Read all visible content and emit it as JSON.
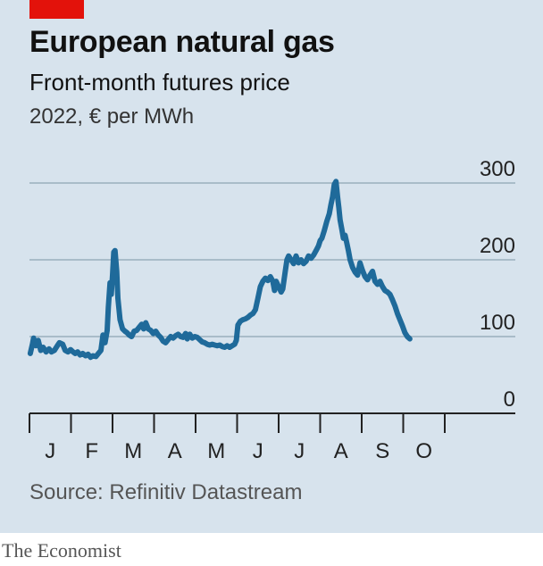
{
  "header": {
    "title": "European natural gas",
    "subtitle": "Front-month futures price",
    "units": "2022, € per MWh"
  },
  "footer": {
    "source": "Source: Refinitiv Datastream",
    "brand": "The Economist"
  },
  "colors": {
    "background": "#d7e3ed",
    "line": "#1f6a9a",
    "accent": "#e3120b",
    "grid": "#a9bcc9"
  },
  "chart_data": {
    "type": "line",
    "title": "European natural gas",
    "subtitle": "Front-month futures price",
    "ylabel": "2022, € per MWh",
    "xlabel": "",
    "ylim": [
      0,
      300
    ],
    "yticks": [
      0,
      100,
      200,
      300
    ],
    "grid": true,
    "x_tick_labels": [
      "J",
      "F",
      "M",
      "A",
      "M",
      "J",
      "J",
      "A",
      "S",
      "O"
    ],
    "x_units": "month index (0 = 1 Jan 2022, 1 = 1 Feb 2022, ...)",
    "xlim": [
      0,
      12
    ],
    "series": [
      {
        "name": "",
        "points": [
          [
            0.02,
            78
          ],
          [
            0.07,
            90
          ],
          [
            0.1,
            98
          ],
          [
            0.16,
            88
          ],
          [
            0.21,
            95
          ],
          [
            0.27,
            82
          ],
          [
            0.33,
            86
          ],
          [
            0.4,
            80
          ],
          [
            0.47,
            84
          ],
          [
            0.53,
            80
          ],
          [
            0.6,
            82
          ],
          [
            0.67,
            88
          ],
          [
            0.72,
            92
          ],
          [
            0.8,
            90
          ],
          [
            0.86,
            82
          ],
          [
            0.93,
            80
          ],
          [
            0.99,
            83
          ],
          [
            1.05,
            80
          ],
          [
            1.1,
            78
          ],
          [
            1.16,
            80
          ],
          [
            1.22,
            76
          ],
          [
            1.28,
            78
          ],
          [
            1.35,
            75
          ],
          [
            1.41,
            77
          ],
          [
            1.47,
            73
          ],
          [
            1.53,
            75
          ],
          [
            1.6,
            74
          ],
          [
            1.66,
            78
          ],
          [
            1.72,
            82
          ],
          [
            1.77,
            102
          ],
          [
            1.82,
            92
          ],
          [
            1.87,
            108
          ],
          [
            1.9,
            138
          ],
          [
            1.94,
            170
          ],
          [
            1.97,
            155
          ],
          [
            2.0,
            180
          ],
          [
            2.03,
            210
          ],
          [
            2.06,
            212
          ],
          [
            2.1,
            185
          ],
          [
            2.13,
            150
          ],
          [
            2.18,
            122
          ],
          [
            2.24,
            110
          ],
          [
            2.3,
            107
          ],
          [
            2.35,
            105
          ],
          [
            2.4,
            102
          ],
          [
            2.46,
            100
          ],
          [
            2.52,
            107
          ],
          [
            2.58,
            108
          ],
          [
            2.64,
            112
          ],
          [
            2.7,
            116
          ],
          [
            2.75,
            110
          ],
          [
            2.8,
            118
          ],
          [
            2.86,
            110
          ],
          [
            2.92,
            108
          ],
          [
            2.98,
            104
          ],
          [
            3.04,
            107
          ],
          [
            3.1,
            102
          ],
          [
            3.16,
            99
          ],
          [
            3.22,
            94
          ],
          [
            3.28,
            92
          ],
          [
            3.34,
            96
          ],
          [
            3.4,
            100
          ],
          [
            3.46,
            98
          ],
          [
            3.52,
            101
          ],
          [
            3.58,
            103
          ],
          [
            3.64,
            100
          ],
          [
            3.7,
            99
          ],
          [
            3.76,
            104
          ],
          [
            3.8,
            97
          ],
          [
            3.86,
            103
          ],
          [
            3.92,
            98
          ],
          [
            3.98,
            100
          ],
          [
            4.04,
            99
          ],
          [
            4.1,
            96
          ],
          [
            4.16,
            93
          ],
          [
            4.22,
            92
          ],
          [
            4.28,
            90
          ],
          [
            4.34,
            89
          ],
          [
            4.4,
            90
          ],
          [
            4.46,
            89
          ],
          [
            4.52,
            88
          ],
          [
            4.58,
            89
          ],
          [
            4.64,
            87
          ],
          [
            4.7,
            86
          ],
          [
            4.76,
            88
          ],
          [
            4.82,
            86
          ],
          [
            4.88,
            88
          ],
          [
            4.94,
            90
          ],
          [
            4.98,
            95
          ],
          [
            5.02,
            115
          ],
          [
            5.08,
            120
          ],
          [
            5.14,
            122
          ],
          [
            5.2,
            123
          ],
          [
            5.26,
            125
          ],
          [
            5.32,
            128
          ],
          [
            5.38,
            130
          ],
          [
            5.44,
            135
          ],
          [
            5.5,
            150
          ],
          [
            5.56,
            165
          ],
          [
            5.62,
            172
          ],
          [
            5.68,
            176
          ],
          [
            5.74,
            173
          ],
          [
            5.8,
            178
          ],
          [
            5.86,
            172
          ],
          [
            5.9,
            160
          ],
          [
            5.94,
            172
          ],
          [
            6.0,
            165
          ],
          [
            6.06,
            158
          ],
          [
            6.1,
            162
          ],
          [
            6.16,
            185
          ],
          [
            6.2,
            200
          ],
          [
            6.24,
            205
          ],
          [
            6.3,
            200
          ],
          [
            6.36,
            195
          ],
          [
            6.42,
            205
          ],
          [
            6.48,
            196
          ],
          [
            6.54,
            200
          ],
          [
            6.6,
            195
          ],
          [
            6.66,
            198
          ],
          [
            6.72,
            205
          ],
          [
            6.78,
            202
          ],
          [
            6.84,
            206
          ],
          [
            6.9,
            212
          ],
          [
            6.96,
            218
          ],
          [
            7.0,
            225
          ],
          [
            7.04,
            228
          ],
          [
            7.1,
            238
          ],
          [
            7.16,
            250
          ],
          [
            7.22,
            260
          ],
          [
            7.26,
            272
          ],
          [
            7.3,
            282
          ],
          [
            7.34,
            298
          ],
          [
            7.38,
            302
          ],
          [
            7.42,
            282
          ],
          [
            7.45,
            268
          ],
          [
            7.48,
            252
          ],
          [
            7.52,
            240
          ],
          [
            7.56,
            228
          ],
          [
            7.6,
            232
          ],
          [
            7.64,
            222
          ],
          [
            7.68,
            212
          ],
          [
            7.72,
            200
          ],
          [
            7.78,
            190
          ],
          [
            7.84,
            184
          ],
          [
            7.9,
            180
          ],
          [
            7.96,
            196
          ],
          [
            8.02,
            186
          ],
          [
            8.08,
            178
          ],
          [
            8.14,
            174
          ],
          [
            8.2,
            180
          ],
          [
            8.26,
            185
          ],
          [
            8.32,
            172
          ],
          [
            8.38,
            168
          ],
          [
            8.44,
            172
          ],
          [
            8.5,
            165
          ],
          [
            8.56,
            160
          ],
          [
            8.62,
            158
          ],
          [
            8.68,
            155
          ],
          [
            8.74,
            148
          ],
          [
            8.8,
            140
          ],
          [
            8.86,
            130
          ],
          [
            8.92,
            122
          ],
          [
            8.98,
            114
          ],
          [
            9.04,
            105
          ],
          [
            9.1,
            100
          ],
          [
            9.16,
            97
          ]
        ]
      }
    ]
  }
}
